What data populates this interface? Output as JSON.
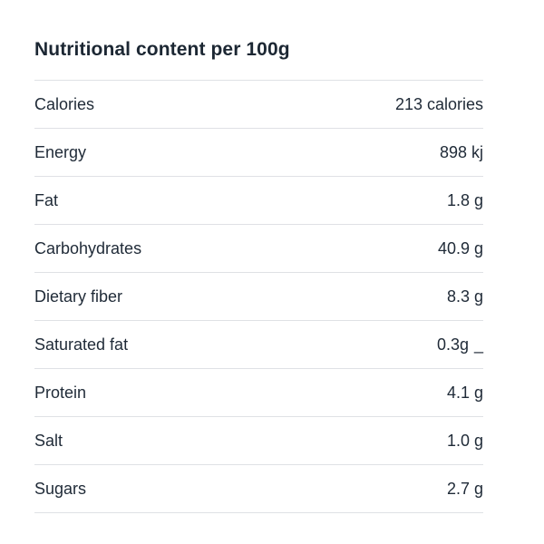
{
  "page": {
    "background_color": "#ffffff",
    "text_color": "#1f2a37",
    "divider_color": "#dfe1e5"
  },
  "table": {
    "title": "Nutritional content per 100g",
    "rows": [
      {
        "label": "Calories",
        "value": "213 calories",
        "cursor": ""
      },
      {
        "label": "Energy",
        "value": "898 kj",
        "cursor": ""
      },
      {
        "label": "Fat",
        "value": "1.8 g",
        "cursor": ""
      },
      {
        "label": "Carbohydrates",
        "value": "40.9 g",
        "cursor": ""
      },
      {
        "label": "Dietary fiber",
        "value": "8.3 g",
        "cursor": ""
      },
      {
        "label": "Saturated fat",
        "value": "0.3g",
        "cursor": "_"
      },
      {
        "label": "Protein",
        "value": "4.1 g",
        "cursor": ""
      },
      {
        "label": "Salt",
        "value": "1.0 g",
        "cursor": ""
      },
      {
        "label": "Sugars",
        "value": "2.7 g",
        "cursor": ""
      }
    ]
  }
}
